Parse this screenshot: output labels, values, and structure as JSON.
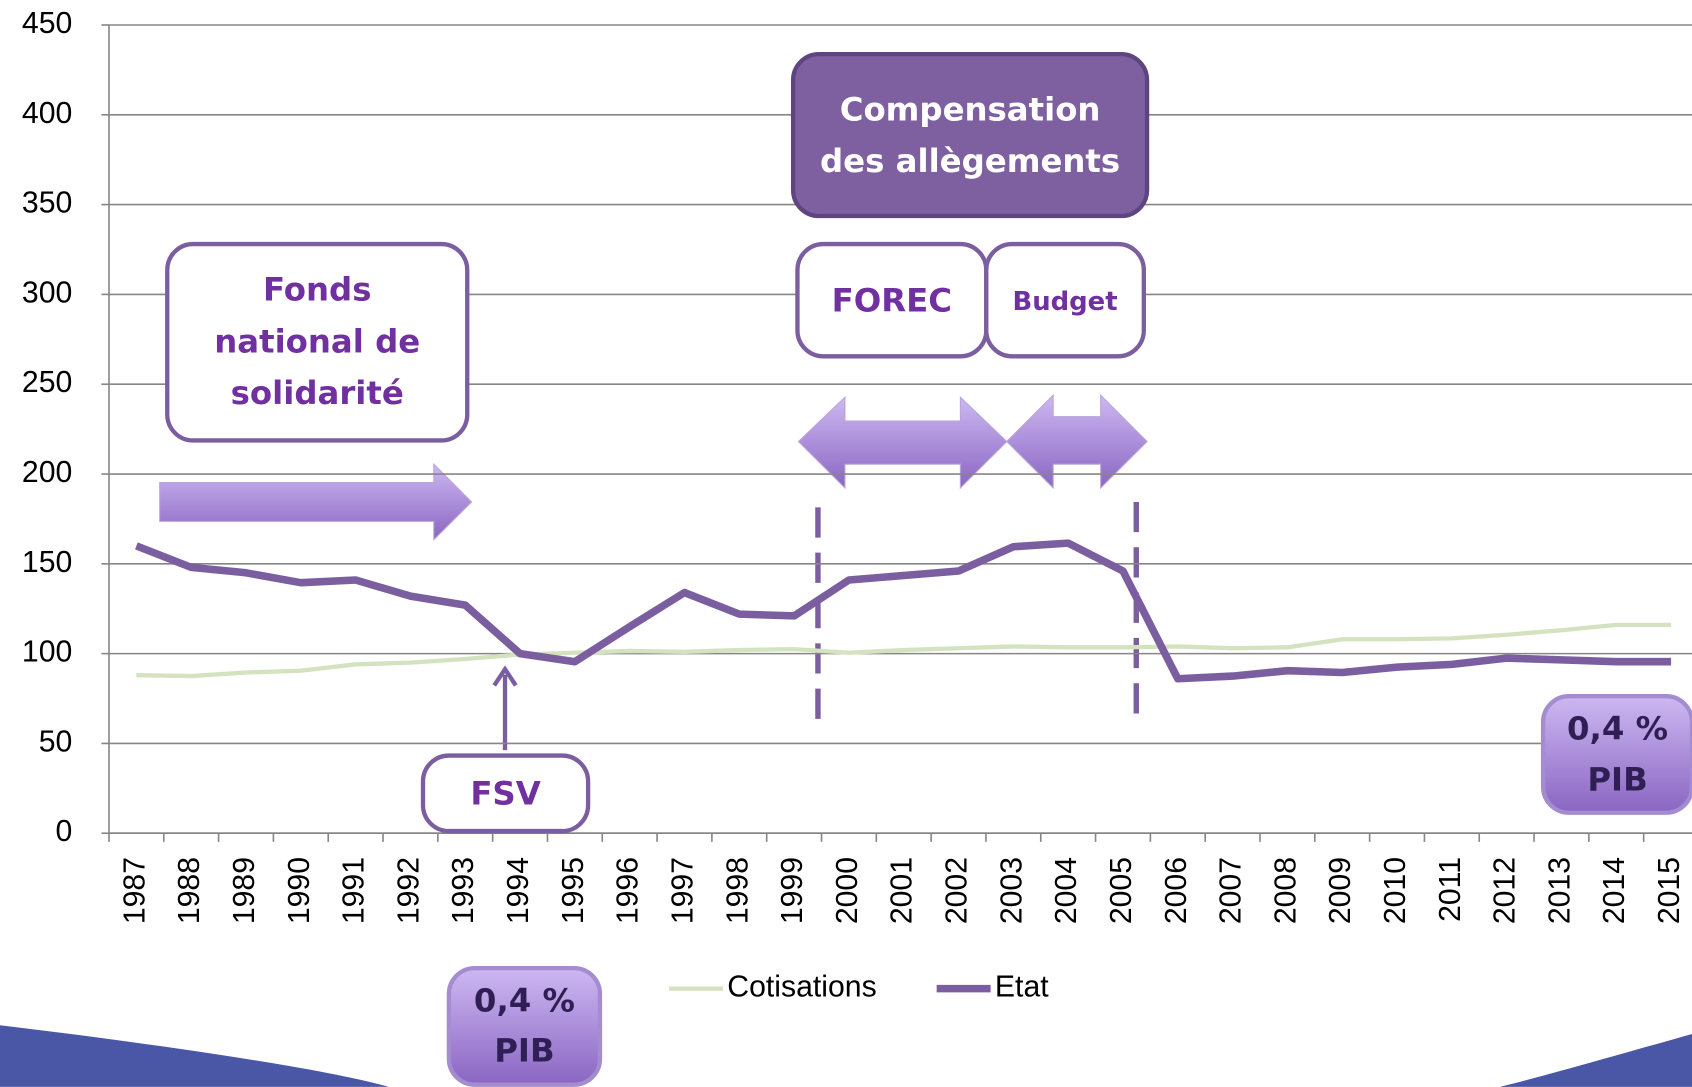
{
  "chart_data": {
    "type": "line",
    "categories": [
      "1987",
      "1988",
      "1989",
      "1990",
      "1991",
      "1992",
      "1993",
      "1994",
      "1995",
      "1996",
      "1997",
      "1998",
      "1999",
      "2000",
      "2001",
      "2002",
      "2003",
      "2004",
      "2005",
      "2006",
      "2007",
      "2008",
      "2009",
      "2010",
      "2011",
      "2012",
      "2013",
      "2014",
      "2015"
    ],
    "series": [
      {
        "name": "Cotisations",
        "color": "#d3e3bf",
        "values": [
          88,
          87.5,
          89.5,
          90.5,
          94,
          95,
          97,
          99.5,
          100.5,
          101.5,
          101,
          102,
          102.5,
          100.5,
          102,
          103,
          104,
          103.5,
          103.5,
          104,
          103,
          103.5,
          108,
          108,
          108.5,
          110.5,
          113,
          116,
          116
        ]
      },
      {
        "name": "Etat",
        "color": "#7b5ea0",
        "values": [
          160,
          148,
          145,
          139.5,
          141,
          132,
          127,
          100,
          95.5,
          115,
          134,
          122,
          121,
          141,
          143.5,
          146,
          159.5,
          161.5,
          146,
          86,
          87.5,
          90.5,
          89.5,
          92.5,
          94,
          97.5,
          96.5,
          95.5,
          95.5
        ]
      }
    ],
    "ylim": [
      0,
      450
    ],
    "yticks": [
      0,
      50,
      100,
      150,
      200,
      250,
      300,
      350,
      400,
      450
    ],
    "grid": true,
    "legend": "bottom",
    "annotations": [
      {
        "lines": [
          "Fonds",
          "national de",
          "solidarité"
        ]
      },
      {
        "lines": [
          "FSV"
        ]
      },
      {
        "lines": [
          "Compensation",
          "des allègements"
        ]
      },
      {
        "lines": [
          "FOREC"
        ]
      },
      {
        "lines": [
          "Budget"
        ]
      },
      {
        "lines": [
          "0,4 %",
          "PIB"
        ]
      },
      {
        "lines": [
          "0,4 %",
          "PIB"
        ]
      }
    ]
  }
}
